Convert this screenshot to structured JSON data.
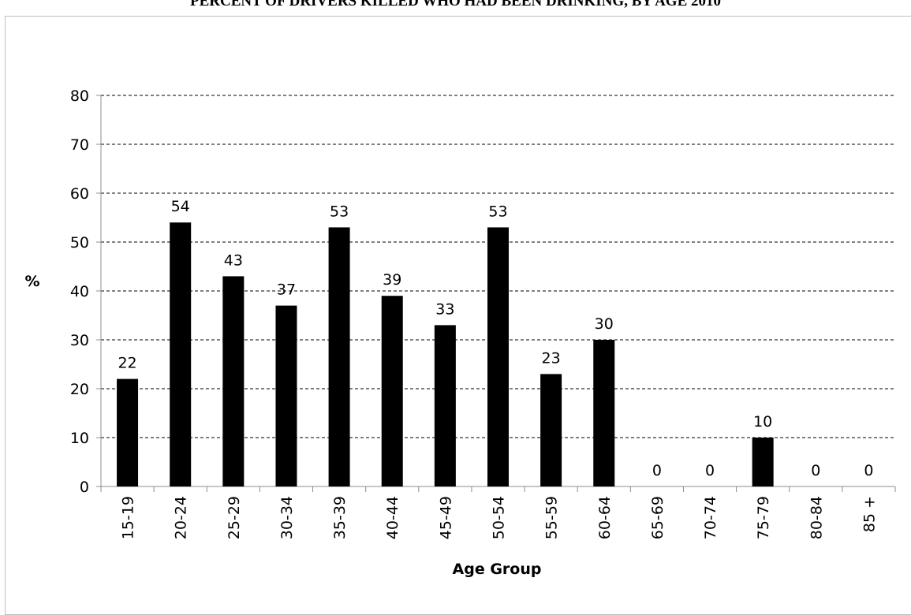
{
  "title": "PERCENT OF DRIVERS KILLED WHO HAD BEEN DRINKING, BY AGE 2010",
  "chart_data": {
    "type": "bar",
    "title": "PERCENT OF DRIVERS KILLED WHO HAD BEEN DRINKING, BY AGE 2010",
    "xlabel": "Age Group",
    "ylabel": "%",
    "categories": [
      "15-19",
      "20-24",
      "25-29",
      "30-34",
      "35-39",
      "40-44",
      "45-49",
      "50-54",
      "55-59",
      "60-64",
      "65-69",
      "70-74",
      "75-79",
      "80-84",
      "85 +"
    ],
    "values": [
      22,
      54,
      43,
      37,
      53,
      39,
      33,
      53,
      23,
      30,
      0,
      0,
      10,
      0,
      0
    ],
    "yticks": [
      "0",
      "10",
      "20",
      "30",
      "40",
      "50",
      "60",
      "70",
      "80"
    ],
    "ylim": [
      0,
      80
    ],
    "grid": true,
    "grid_style": "dashed",
    "legend": "none",
    "bar_color": "#000000"
  }
}
